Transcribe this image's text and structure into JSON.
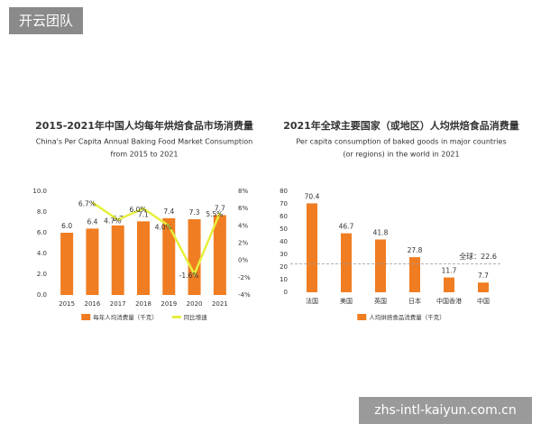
{
  "header": {
    "badge": "开云团队"
  },
  "footer": {
    "watermark": "zhs-intl-kaiyun.com.cn"
  },
  "chart_data": [
    {
      "type": "bar",
      "title": "2015-2021年中国人均每年烘焙食品市场消费量",
      "subtitle": [
        "China's Per Capita Annual Baking Food Market Consumption",
        "from 2015 to 2021"
      ],
      "categories": [
        "2015",
        "2016",
        "2017",
        "2018",
        "2019",
        "2020",
        "2021"
      ],
      "series": [
        {
          "name": "每年人均消费量（千克）",
          "type": "bar",
          "color": "#f07d22",
          "values": [
            6.0,
            6.4,
            6.7,
            7.1,
            7.4,
            7.3,
            7.7
          ],
          "value_labels": [
            "6.0",
            "6.4",
            "6.7",
            "7.1",
            "7.4",
            "7.3",
            "7.7"
          ]
        },
        {
          "name": "同比增速",
          "type": "line",
          "axis": "y2",
          "color": "#e6ef3c",
          "values": [
            null,
            6.7,
            4.7,
            6.0,
            4.0,
            -1.6,
            5.5
          ],
          "value_labels": [
            null,
            "6.7%",
            "4.7%",
            "6.0%",
            "4.0%",
            "-1.6%",
            "5.5%"
          ]
        }
      ],
      "ylim": [
        0,
        10
      ],
      "yticks": [
        {
          "value": 0,
          "label": "0.0"
        },
        {
          "value": 2,
          "label": "2.0"
        },
        {
          "value": 4,
          "label": "4.0"
        },
        {
          "value": 6,
          "label": "6.0"
        },
        {
          "value": 8,
          "label": "8.0"
        },
        {
          "value": 10,
          "label": "10.0"
        }
      ],
      "y2lim": [
        -4,
        8
      ],
      "y2ticks": [
        {
          "value": -4,
          "label": "-4%"
        },
        {
          "value": -2,
          "label": "-2%"
        },
        {
          "value": 0,
          "label": "0%"
        },
        {
          "value": 2,
          "label": "2%"
        },
        {
          "value": 4,
          "label": "4%"
        },
        {
          "value": 6,
          "label": "6%"
        },
        {
          "value": 8,
          "label": "8%"
        }
      ],
      "grid": false
    },
    {
      "type": "bar",
      "title": "2021年全球主要国家（或地区）人均烘焙食品消费量",
      "subtitle": [
        "Per capita consumption of baked goods in major countries",
        "(or regions) in the world in 2021"
      ],
      "categories": [
        "法国",
        "美国",
        "英国",
        "日本",
        "中国香港",
        "中国"
      ],
      "series": [
        {
          "name": "人均烘焙食品消费量（千克）",
          "type": "bar",
          "color": "#f07d22",
          "values": [
            70.4,
            46.7,
            41.8,
            27.8,
            11.7,
            7.7
          ]
        }
      ],
      "ylim": [
        0,
        80
      ],
      "yticks": [
        0,
        10,
        20,
        30,
        40,
        50,
        60,
        70,
        80
      ],
      "reference_line": {
        "value": 22.6,
        "label": "全球：22.6"
      },
      "grid": false
    }
  ]
}
